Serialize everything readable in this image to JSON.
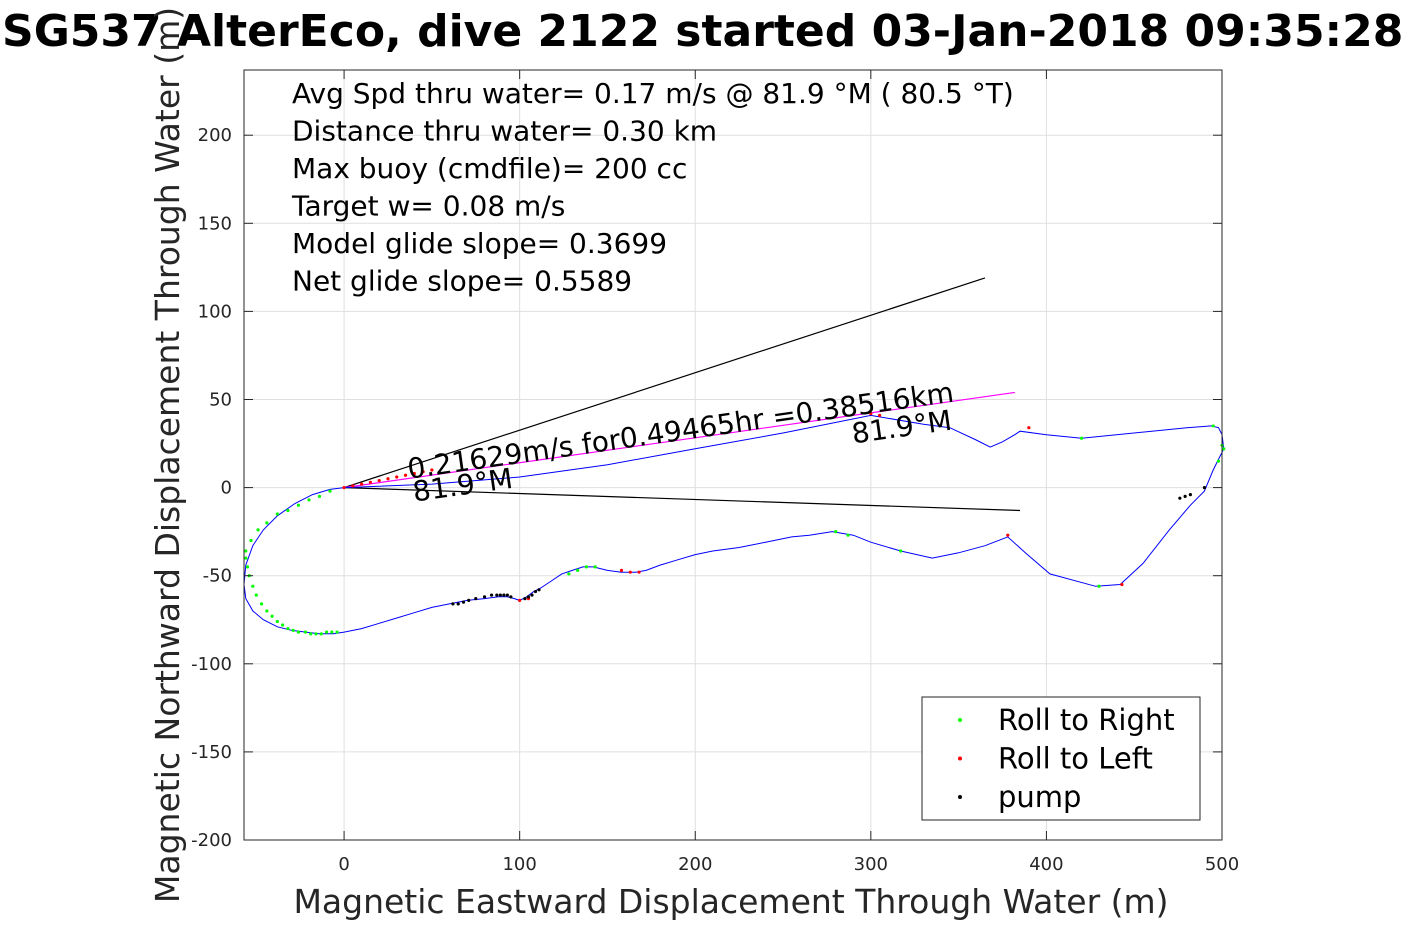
{
  "chart_data": {
    "type": "scatter",
    "title": "SG537 AlterEco, dive 2122 started 03-Jan-2018 09:35:28",
    "xlabel": "Magnetic Eastward Displacement Through Water (m)",
    "ylabel": "Magnetic Northward Displacement Through Water (m)",
    "xlim": [
      -57,
      500
    ],
    "ylim": [
      -200,
      237
    ],
    "xticks": [
      0,
      100,
      200,
      300,
      400,
      500
    ],
    "yticks": [
      -200,
      -150,
      -100,
      -50,
      0,
      50,
      100,
      150,
      200
    ],
    "grid": true,
    "info_lines": [
      "Avg Spd thru water=  0.17 m/s @  81.9 °M ( 80.5 °T)",
      "Distance thru water=  0.30 km",
      "Max buoy (cmdfile)= 200 cc",
      "Target w= 0.08 m/s",
      "Model glide slope= 0.3699",
      "Net glide slope= 0.5589"
    ],
    "annotations": [
      {
        "text": "0.21629m/s for0.49465hr =0.38516km",
        "x": 37,
        "y": 5
      },
      {
        "text": "81.9°M",
        "x": 40,
        "y": -8
      },
      {
        "text": "81.9°M",
        "x": 290,
        "y": 25
      }
    ],
    "track": {
      "name": "track",
      "color": "#0000ff",
      "x": [
        0,
        -8,
        -18,
        -28,
        -38,
        -46,
        -52,
        -56,
        -57,
        -56,
        -52,
        -46,
        -38,
        -30,
        -22,
        -14,
        -6,
        0,
        10,
        20,
        30,
        40,
        50,
        60,
        70,
        80,
        88,
        93,
        97,
        100,
        104,
        108,
        112,
        118,
        124,
        130,
        136,
        142,
        150,
        158,
        166,
        172,
        180,
        190,
        200,
        210,
        225,
        240,
        255,
        265,
        278,
        290,
        300,
        317,
        335,
        350,
        365,
        378,
        388,
        402,
        428,
        442,
        455,
        470,
        482,
        490,
        495,
        499,
        501,
        500,
        498,
        494,
        480,
        420,
        400,
        385,
        382,
        375,
        368,
        360,
        345,
        330,
        300,
        250,
        200,
        150,
        100,
        50,
        0
      ],
      "y": [
        0,
        -1,
        -4,
        -9,
        -16,
        -24,
        -33,
        -44,
        -55,
        -63,
        -70,
        -75,
        -79,
        -81,
        -82,
        -83,
        -83,
        -82,
        -80,
        -77,
        -74,
        -71,
        -68,
        -66,
        -64,
        -63,
        -62,
        -62,
        -63,
        -64,
        -62,
        -59,
        -57,
        -53,
        -49,
        -47,
        -45,
        -45,
        -47,
        -48,
        -48,
        -47,
        -44,
        -41,
        -38,
        -36,
        -34,
        -31,
        -28,
        -27,
        -25,
        -27,
        -31,
        -36,
        -40,
        -37,
        -33,
        -28,
        -37,
        -49,
        -56,
        -55,
        -43,
        -24,
        -10,
        -2,
        10,
        18,
        22,
        30,
        34,
        35,
        34,
        28,
        30,
        32,
        30,
        26,
        23,
        27,
        34,
        36,
        41,
        31,
        22,
        13,
        6,
        2,
        0
      ]
    },
    "series": [
      {
        "name": "Roll to Right",
        "color": "#00ff00",
        "x": [
          -56,
          -55,
          -54,
          -52,
          -50,
          -47,
          -44,
          -41,
          -38,
          -35,
          -32,
          -29,
          -26,
          -22,
          -19,
          -16,
          -13,
          -10,
          -7,
          -4,
          -8,
          -14,
          -20,
          -26,
          -32,
          -38,
          -44,
          -49,
          -53,
          -56,
          128,
          133,
          138,
          143,
          280,
          287,
          317,
          420,
          430,
          495,
          500,
          498,
          501
        ],
        "y": [
          -40,
          -45,
          -50,
          -56,
          -61,
          -66,
          -70,
          -73,
          -76,
          -78,
          -80,
          -81,
          -82,
          -82,
          -83,
          -83,
          -83,
          -82,
          -82,
          -82,
          -2,
          -5,
          -7,
          -10,
          -13,
          -15,
          -20,
          -24,
          -30,
          -36,
          -49,
          -47,
          -45,
          -45,
          -25,
          -27,
          -36,
          28,
          -56,
          35,
          24,
          15,
          22
        ]
      },
      {
        "name": "Roll to Left",
        "color": "#ff0000",
        "x": [
          0,
          5,
          10,
          15,
          20,
          25,
          30,
          35,
          40,
          45,
          50,
          100,
          105,
          158,
          163,
          168,
          300,
          305,
          378,
          390,
          443
        ],
        "y": [
          0,
          1,
          2,
          3,
          4,
          5,
          6,
          7,
          8,
          9,
          10,
          -64,
          -63,
          -47,
          -48,
          -48,
          42,
          41,
          -27,
          34,
          -55
        ]
      },
      {
        "name": "pump",
        "color": "#000000",
        "x": [
          62,
          65,
          68,
          71,
          75,
          80,
          84,
          87,
          89,
          91,
          93,
          95,
          103,
          105,
          107,
          109,
          111,
          476,
          479,
          482,
          490
        ],
        "y": [
          -66,
          -66,
          -65,
          -64,
          -63,
          -62,
          -61,
          -61,
          -61,
          -61,
          -61,
          -62,
          -63,
          -62,
          -61,
          -59,
          -58,
          -6,
          -5,
          -4,
          0
        ]
      }
    ],
    "reference_lines": [
      {
        "x": [
          0,
          365
        ],
        "y": [
          0,
          119
        ],
        "color": "#000000"
      },
      {
        "x": [
          0,
          385
        ],
        "y": [
          0,
          -13
        ],
        "color": "#000000"
      },
      {
        "x": [
          0,
          382
        ],
        "y": [
          0,
          54
        ],
        "color": "#ff00ff"
      }
    ],
    "legend": {
      "position": "bottom-right",
      "entries": [
        {
          "label": "Roll to Right",
          "color": "#00ff00"
        },
        {
          "label": "Roll to Left",
          "color": "#ff0000"
        },
        {
          "label": "pump",
          "color": "#000000"
        }
      ]
    }
  }
}
